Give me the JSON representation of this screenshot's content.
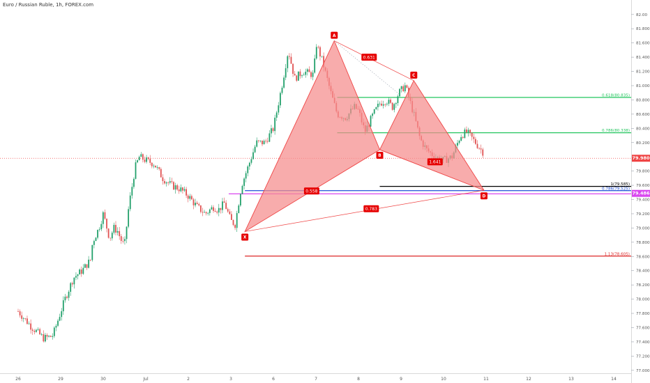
{
  "title": "Euro / Russian Ruble, 1h, FOREX.com",
  "chart_data": {
    "type": "candlestick",
    "symbol": "Euro / Russian Ruble",
    "interval": "1h",
    "source": "FOREX.com",
    "price_range": [
      76.9,
      82.25
    ],
    "price_ticks": [
      "82.00",
      "81.800",
      "81.600",
      "81.400",
      "81.200",
      "81.000",
      "80.800",
      "80.600",
      "80.400",
      "80.200",
      "79.800",
      "79.600",
      "79.400",
      "79.200",
      "79.000",
      "78.800",
      "78.600",
      "78.400",
      "78.200",
      "78.000",
      "77.800",
      "77.600",
      "77.400",
      "77.200",
      "77.000"
    ],
    "time_ticks": [
      "26",
      "29",
      "30",
      "Jul",
      "2",
      "3",
      "6",
      "7",
      "8",
      "9",
      "10",
      "11",
      "12",
      "13",
      "14"
    ],
    "close_path": [
      {
        "d": 0.0,
        "p": 77.83
      },
      {
        "d": 0.3,
        "p": 77.62
      },
      {
        "d": 0.6,
        "p": 77.45
      },
      {
        "d": 0.8,
        "p": 77.48
      },
      {
        "d": 0.85,
        "p": 77.55
      },
      {
        "d": 1.1,
        "p": 78.0
      },
      {
        "d": 1.3,
        "p": 78.3
      },
      {
        "d": 1.5,
        "p": 78.4
      },
      {
        "d": 1.7,
        "p": 78.55
      },
      {
        "d": 1.75,
        "p": 78.8
      },
      {
        "d": 1.9,
        "p": 79.0
      },
      {
        "d": 2.0,
        "p": 79.2
      },
      {
        "d": 2.15,
        "p": 78.85
      },
      {
        "d": 2.25,
        "p": 79.0
      },
      {
        "d": 2.35,
        "p": 78.95
      },
      {
        "d": 2.4,
        "p": 78.85
      },
      {
        "d": 2.5,
        "p": 78.75
      },
      {
        "d": 2.6,
        "p": 79.3
      },
      {
        "d": 2.75,
        "p": 79.85
      },
      {
        "d": 2.85,
        "p": 80.0
      },
      {
        "d": 3.0,
        "p": 79.95
      },
      {
        "d": 3.2,
        "p": 79.9
      },
      {
        "d": 3.4,
        "p": 79.7
      },
      {
        "d": 3.6,
        "p": 79.6
      },
      {
        "d": 3.8,
        "p": 79.55
      },
      {
        "d": 4.0,
        "p": 79.45
      },
      {
        "d": 4.2,
        "p": 79.3
      },
      {
        "d": 4.4,
        "p": 79.2
      },
      {
        "d": 4.6,
        "p": 79.3
      },
      {
        "d": 4.7,
        "p": 79.25
      },
      {
        "d": 4.85,
        "p": 79.35
      },
      {
        "d": 5.0,
        "p": 79.1
      },
      {
        "d": 5.1,
        "p": 79.05
      },
      {
        "d": 5.25,
        "p": 79.6
      },
      {
        "d": 5.4,
        "p": 79.85
      },
      {
        "d": 5.6,
        "p": 80.2
      },
      {
        "d": 5.8,
        "p": 80.2
      },
      {
        "d": 6.0,
        "p": 80.4
      },
      {
        "d": 6.2,
        "p": 81.0
      },
      {
        "d": 6.35,
        "p": 81.5
      },
      {
        "d": 6.5,
        "p": 81.1
      },
      {
        "d": 6.7,
        "p": 81.2
      },
      {
        "d": 6.95,
        "p": 81.15
      },
      {
        "d": 7.0,
        "p": 81.6
      },
      {
        "d": 7.15,
        "p": 81.35
      },
      {
        "d": 7.35,
        "p": 80.9
      },
      {
        "d": 7.5,
        "p": 80.6
      },
      {
        "d": 7.7,
        "p": 80.55
      },
      {
        "d": 7.9,
        "p": 80.7
      },
      {
        "d": 8.0,
        "p": 80.65
      },
      {
        "d": 8.15,
        "p": 80.35
      },
      {
        "d": 8.35,
        "p": 80.6
      },
      {
        "d": 8.5,
        "p": 80.75
      },
      {
        "d": 8.65,
        "p": 80.8
      },
      {
        "d": 8.8,
        "p": 80.7
      },
      {
        "d": 8.95,
        "p": 80.9
      },
      {
        "d": 9.1,
        "p": 81.0
      },
      {
        "d": 9.3,
        "p": 80.6
      },
      {
        "d": 9.45,
        "p": 80.25
      },
      {
        "d": 9.6,
        "p": 80.1
      },
      {
        "d": 9.8,
        "p": 80.0
      },
      {
        "d": 10.0,
        "p": 79.95
      },
      {
        "d": 10.2,
        "p": 80.0
      },
      {
        "d": 10.4,
        "p": 80.3
      },
      {
        "d": 10.55,
        "p": 80.35
      },
      {
        "d": 10.75,
        "p": 80.2
      },
      {
        "d": 10.95,
        "p": 80.05
      }
    ],
    "harmonic_pattern": {
      "points": [
        {
          "label": "X",
          "d": 5.33,
          "p": 78.95
        },
        {
          "label": "A",
          "d": 7.43,
          "p": 81.63
        },
        {
          "label": "B",
          "d": 8.5,
          "p": 80.1
        },
        {
          "label": "C",
          "d": 9.3,
          "p": 81.07
        },
        {
          "label": "D",
          "d": 10.95,
          "p": 79.53
        }
      ],
      "ratios": [
        {
          "label": "0.631",
          "d": 8.25,
          "p": 81.4
        },
        {
          "label": "0.558",
          "d": 6.9,
          "p": 79.52
        },
        {
          "label": "0.783",
          "d": 8.3,
          "p": 79.27
        },
        {
          "label": "1.641",
          "d": 9.8,
          "p": 79.93
        }
      ]
    },
    "levels": [
      {
        "label": "0.618(80.835)",
        "price": 80.835,
        "color": "#22c55e",
        "from": 7.5
      },
      {
        "label": "0.786(80.338)",
        "price": 80.338,
        "color": "#22c55e",
        "from": 7.5
      },
      {
        "label": "1(79.585)",
        "price": 79.585,
        "color": "#000000",
        "from": 8.5
      },
      {
        "label": "0.786(79.525)",
        "price": 79.525,
        "color": "#1d4ed8",
        "from": 5.33
      },
      {
        "label": "",
        "price": 79.48,
        "color": "#d946ef",
        "from": 4.95
      },
      {
        "label": "1.13(78.605)",
        "price": 78.605,
        "color": "#dc2626",
        "from": 5.33
      }
    ],
    "last_price": {
      "value": "79.980",
      "price": 79.98,
      "color": "#ef4444"
    },
    "pattern_price_tag": {
      "value": "79.486",
      "price": 79.486,
      "color": "#d946ef"
    },
    "colors": {
      "up": "#22a06b",
      "down": "#e05252",
      "pattern_fill": "#f58c8c",
      "pattern_stroke": "#ef4444"
    }
  }
}
